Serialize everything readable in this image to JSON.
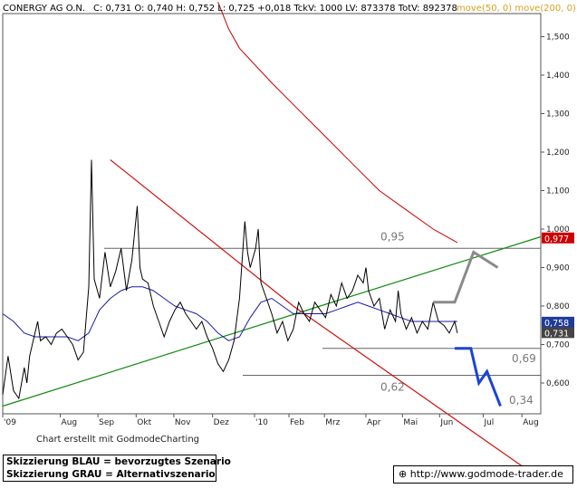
{
  "header": {
    "symbol": "CONERGY AG O.N.",
    "stats": "C: 0,731  O: 0,740  H: 0,752  L: 0,725  +0,018  TckV: 1000  LV: 873378  TotV: 892378",
    "ma_legend": "move(50, 0)  move(200, 0)"
  },
  "colors": {
    "price": "#000000",
    "ma_short": "#1a1aa8",
    "ma_long": "#cc0000",
    "resistance": "#d01010",
    "support": "#128a12",
    "scenario_blue": "#1a44d6",
    "scenario_grey": "#8a8a8a",
    "level_line": "#666666",
    "tag_red": "#cc0000",
    "tag_blue": "#1f3c9a",
    "tag_grey": "#444444"
  },
  "chart_data": {
    "type": "line",
    "series": [],
    "x_labels": [
      "'09",
      "Aug",
      "Sep",
      "Okt",
      "Nov",
      "Dez",
      "'10",
      "Feb",
      "Mrz",
      "Apr",
      "Mai",
      "Jun",
      "Jul",
      "Aug"
    ],
    "y_ticks": [
      "1,500",
      "1,400",
      "1,300",
      "1,200",
      "1,100",
      "1,000",
      "0,900",
      "0,800",
      "0,700",
      "0,600"
    ],
    "ylim": [
      0.52,
      1.56
    ],
    "last_price_tags": [
      {
        "value": 0.977,
        "label": "0,977",
        "color": "tag_red"
      },
      {
        "value": 0.758,
        "label": "0,758",
        "color": "tag_blue"
      },
      {
        "value": 0.731,
        "label": "0,731",
        "color": "tag_grey"
      }
    ],
    "levels": [
      {
        "value": 0.95,
        "label": "0,95"
      },
      {
        "value": 0.69,
        "label": "0,69"
      },
      {
        "value": 0.62,
        "label": "0,62"
      }
    ],
    "target_label": {
      "value": 0.34,
      "label": "0,34"
    },
    "trendlines": [
      {
        "name": "resistance",
        "from": [
          0.2,
          1.18
        ],
        "to": [
          0.54,
          0.8
        ]
      },
      {
        "name": "support",
        "from": [
          0.0,
          0.54
        ],
        "to": [
          0.59,
          0.8
        ]
      }
    ],
    "price_points": [
      [
        0.0,
        0.57
      ],
      [
        0.01,
        0.67
      ],
      [
        0.02,
        0.58
      ],
      [
        0.03,
        0.56
      ],
      [
        0.04,
        0.64
      ],
      [
        0.045,
        0.6
      ],
      [
        0.05,
        0.67
      ],
      [
        0.06,
        0.73
      ],
      [
        0.065,
        0.76
      ],
      [
        0.07,
        0.71
      ],
      [
        0.08,
        0.72
      ],
      [
        0.09,
        0.7
      ],
      [
        0.1,
        0.73
      ],
      [
        0.11,
        0.74
      ],
      [
        0.12,
        0.72
      ],
      [
        0.13,
        0.7
      ],
      [
        0.14,
        0.66
      ],
      [
        0.15,
        0.68
      ],
      [
        0.16,
        0.85
      ],
      [
        0.165,
        1.18
      ],
      [
        0.17,
        0.87
      ],
      [
        0.18,
        0.82
      ],
      [
        0.19,
        0.94
      ],
      [
        0.2,
        0.85
      ],
      [
        0.21,
        0.89
      ],
      [
        0.22,
        0.95
      ],
      [
        0.23,
        0.84
      ],
      [
        0.24,
        0.92
      ],
      [
        0.25,
        1.06
      ],
      [
        0.255,
        0.9
      ],
      [
        0.26,
        0.87
      ],
      [
        0.27,
        0.86
      ],
      [
        0.28,
        0.8
      ],
      [
        0.29,
        0.76
      ],
      [
        0.3,
        0.72
      ],
      [
        0.31,
        0.76
      ],
      [
        0.32,
        0.79
      ],
      [
        0.33,
        0.81
      ],
      [
        0.34,
        0.78
      ],
      [
        0.35,
        0.76
      ],
      [
        0.36,
        0.74
      ],
      [
        0.37,
        0.76
      ],
      [
        0.38,
        0.72
      ],
      [
        0.39,
        0.69
      ],
      [
        0.4,
        0.65
      ],
      [
        0.41,
        0.63
      ],
      [
        0.42,
        0.66
      ],
      [
        0.43,
        0.71
      ],
      [
        0.44,
        0.82
      ],
      [
        0.45,
        1.02
      ],
      [
        0.455,
        0.94
      ],
      [
        0.46,
        0.9
      ],
      [
        0.47,
        0.95
      ],
      [
        0.475,
        1.0
      ],
      [
        0.48,
        0.86
      ],
      [
        0.49,
        0.82
      ],
      [
        0.5,
        0.78
      ],
      [
        0.51,
        0.73
      ],
      [
        0.52,
        0.76
      ],
      [
        0.53,
        0.71
      ],
      [
        0.54,
        0.74
      ],
      [
        0.55,
        0.81
      ],
      [
        0.56,
        0.78
      ],
      [
        0.57,
        0.76
      ],
      [
        0.58,
        0.81
      ],
      [
        0.59,
        0.79
      ],
      [
        0.6,
        0.77
      ],
      [
        0.61,
        0.83
      ],
      [
        0.62,
        0.8
      ],
      [
        0.63,
        0.86
      ],
      [
        0.64,
        0.82
      ],
      [
        0.65,
        0.84
      ],
      [
        0.66,
        0.88
      ],
      [
        0.67,
        0.86
      ],
      [
        0.675,
        0.9
      ],
      [
        0.68,
        0.84
      ],
      [
        0.69,
        0.8
      ],
      [
        0.7,
        0.82
      ],
      [
        0.71,
        0.74
      ],
      [
        0.72,
        0.79
      ],
      [
        0.73,
        0.76
      ],
      [
        0.735,
        0.84
      ],
      [
        0.74,
        0.78
      ],
      [
        0.75,
        0.74
      ],
      [
        0.76,
        0.77
      ],
      [
        0.77,
        0.73
      ],
      [
        0.78,
        0.76
      ],
      [
        0.79,
        0.74
      ],
      [
        0.8,
        0.81
      ],
      [
        0.81,
        0.76
      ],
      [
        0.82,
        0.75
      ],
      [
        0.83,
        0.73
      ],
      [
        0.84,
        0.76
      ],
      [
        0.845,
        0.73
      ]
    ],
    "ma_short_points": [
      [
        0.0,
        0.78
      ],
      [
        0.02,
        0.76
      ],
      [
        0.04,
        0.73
      ],
      [
        0.06,
        0.72
      ],
      [
        0.08,
        0.72
      ],
      [
        0.1,
        0.72
      ],
      [
        0.12,
        0.72
      ],
      [
        0.14,
        0.71
      ],
      [
        0.16,
        0.73
      ],
      [
        0.18,
        0.79
      ],
      [
        0.2,
        0.82
      ],
      [
        0.22,
        0.84
      ],
      [
        0.24,
        0.85
      ],
      [
        0.26,
        0.85
      ],
      [
        0.28,
        0.84
      ],
      [
        0.3,
        0.82
      ],
      [
        0.32,
        0.8
      ],
      [
        0.34,
        0.79
      ],
      [
        0.36,
        0.78
      ],
      [
        0.38,
        0.76
      ],
      [
        0.4,
        0.73
      ],
      [
        0.42,
        0.71
      ],
      [
        0.44,
        0.72
      ],
      [
        0.46,
        0.77
      ],
      [
        0.48,
        0.81
      ],
      [
        0.5,
        0.82
      ],
      [
        0.52,
        0.8
      ],
      [
        0.54,
        0.78
      ],
      [
        0.56,
        0.78
      ],
      [
        0.58,
        0.78
      ],
      [
        0.6,
        0.78
      ],
      [
        0.62,
        0.79
      ],
      [
        0.64,
        0.8
      ],
      [
        0.66,
        0.81
      ],
      [
        0.68,
        0.8
      ],
      [
        0.7,
        0.79
      ],
      [
        0.72,
        0.78
      ],
      [
        0.74,
        0.77
      ],
      [
        0.76,
        0.76
      ],
      [
        0.78,
        0.76
      ],
      [
        0.8,
        0.76
      ],
      [
        0.82,
        0.76
      ],
      [
        0.845,
        0.76
      ]
    ],
    "ma_long_points": [
      [
        0.4,
        1.59
      ],
      [
        0.42,
        1.52
      ],
      [
        0.44,
        1.47
      ],
      [
        0.46,
        1.44
      ],
      [
        0.5,
        1.38
      ],
      [
        0.55,
        1.31
      ],
      [
        0.6,
        1.24
      ],
      [
        0.65,
        1.17
      ],
      [
        0.7,
        1.1
      ],
      [
        0.75,
        1.05
      ],
      [
        0.8,
        1.0
      ],
      [
        0.845,
        0.965
      ]
    ],
    "scenario_grey_points": [
      [
        0.8,
        0.81
      ],
      [
        0.84,
        0.81
      ],
      [
        0.875,
        0.94
      ],
      [
        0.92,
        0.9
      ]
    ],
    "scenario_blue_points": [
      [
        0.84,
        0.69
      ],
      [
        0.87,
        0.69
      ],
      [
        0.885,
        0.6
      ],
      [
        0.9,
        0.63
      ],
      [
        0.925,
        0.54
      ]
    ]
  },
  "footer": {
    "credit": "Chart erstellt mit GodmodeCharting",
    "legend_blue": "Skizzierung BLAU = bevorzugtes Szenario",
    "legend_grey": "Skizzierung GRAU = Alternativszenario",
    "url": "http://www.godmode-trader.de"
  }
}
